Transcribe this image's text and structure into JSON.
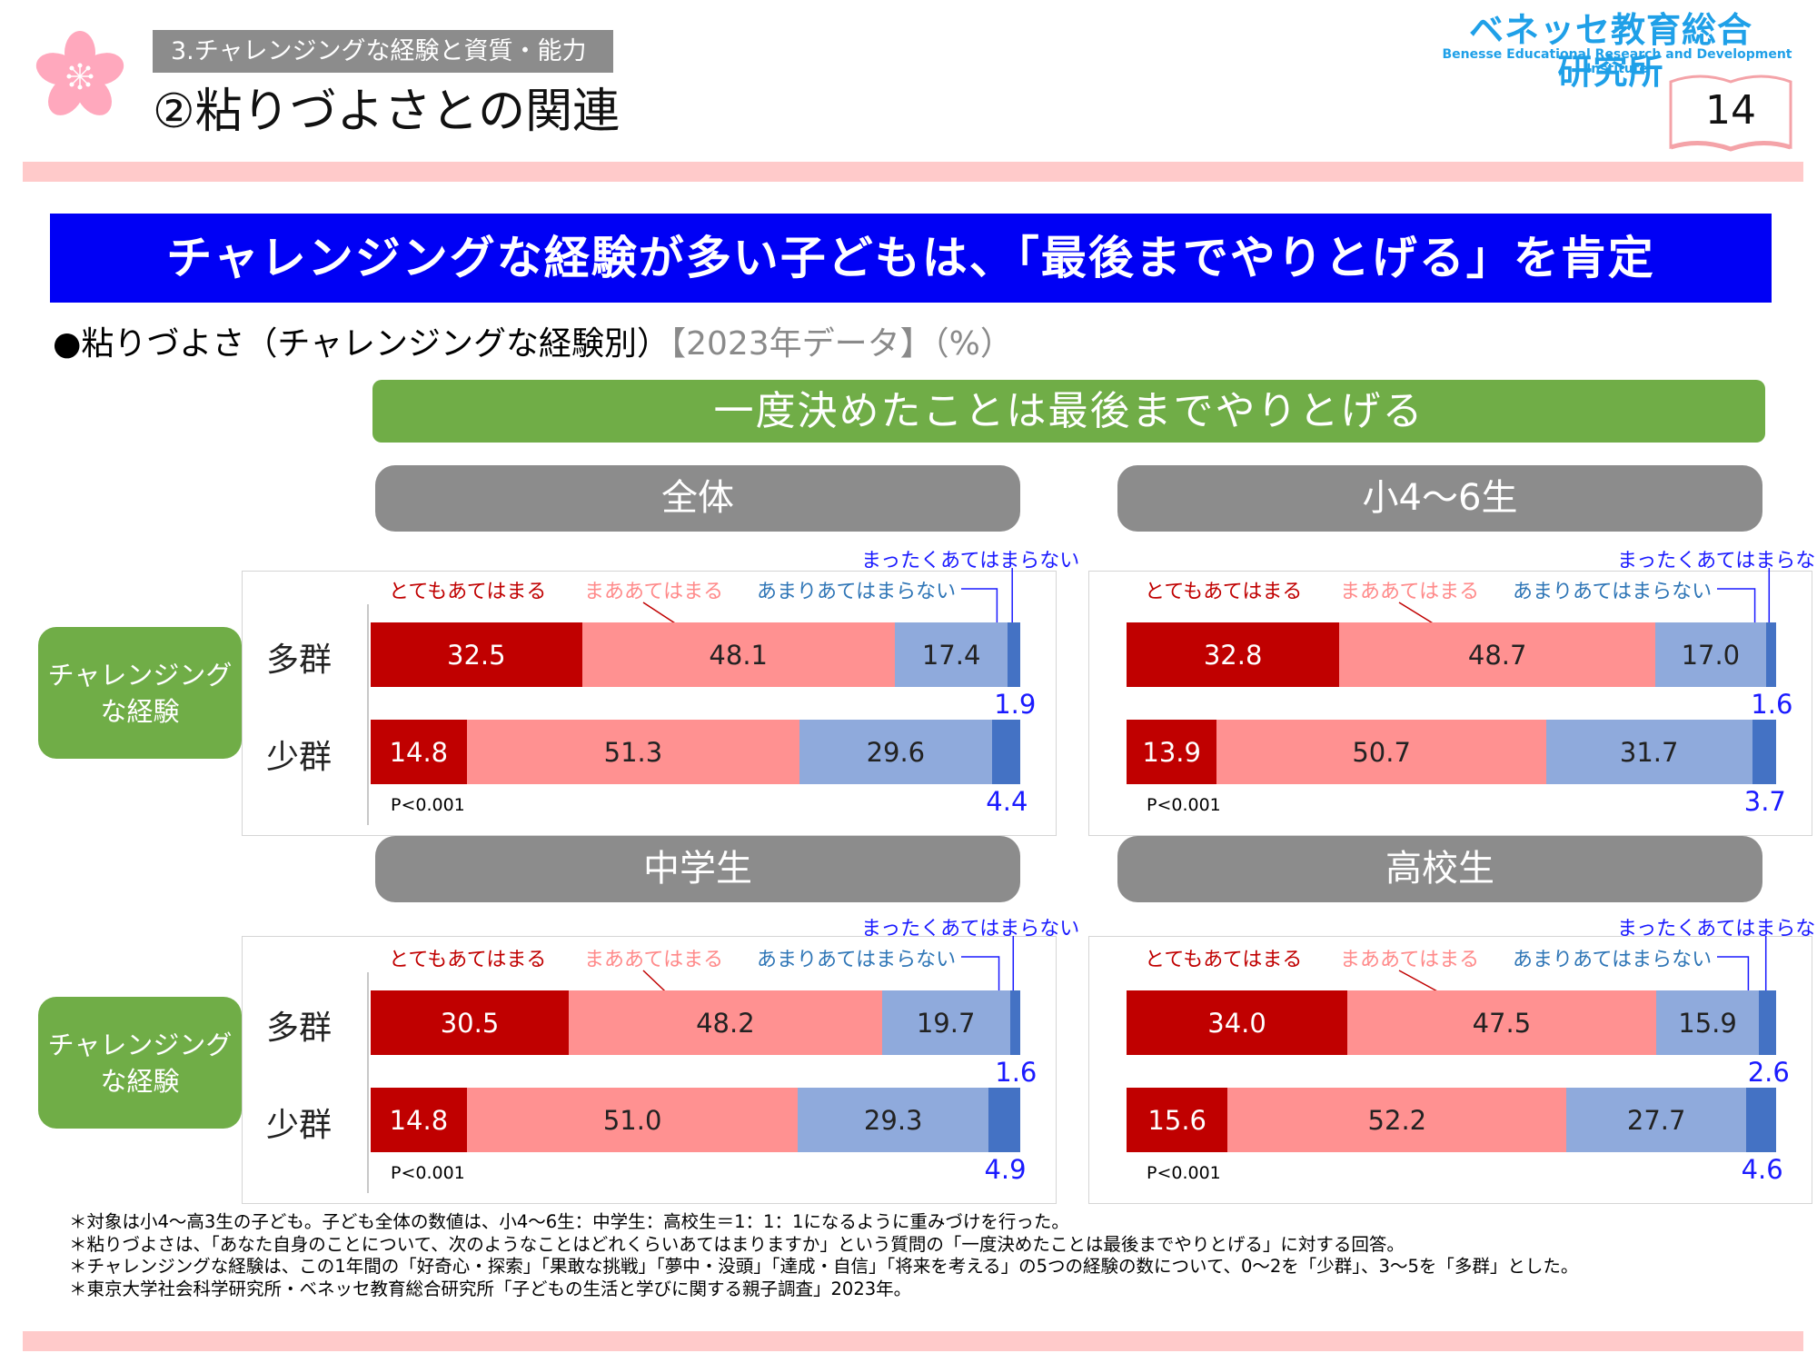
{
  "header": {
    "category": "3.チャレンジングな経験と資質・能力",
    "title": "②粘りづよさとの関連",
    "logo_jp": "ベネッセ教育総合研究所",
    "logo_en": "Benesse  Educational Research and Development Institute",
    "page_number": "14"
  },
  "banner": "チャレンジングな経験が多い子どもは、「最後までやりとげる」を肯定",
  "subtitle": {
    "main": "●粘りづよさ（チャレンジングな経験別）",
    "note": "【2023年データ】（%）"
  },
  "question_label": "一度決めたことは最後までやりとげる",
  "side_label": "チャレンジング\nな経験",
  "colors": {
    "totemo": "#c00000",
    "maa": "#ff9191",
    "amari": "#8faadc",
    "mattaku": "#4472c4",
    "banner": "#0000f5",
    "green": "#70ad47",
    "pink_bar": "#ffcaca"
  },
  "chart_data": {
    "type": "bar",
    "orientation": "horizontal-stacked-100",
    "unit": "%",
    "title": "一度決めたことは最後までやりとげる",
    "legend": [
      "とてもあてはまる",
      "まああてはまる",
      "あまりあてはまらない",
      "まったくあてはまらない"
    ],
    "categories": [
      "多群",
      "少群"
    ],
    "xlim": [
      0,
      100
    ],
    "panels": [
      {
        "title": "全体",
        "series": [
          {
            "name": "とてもあてはまる",
            "values": [
              32.5,
              14.8
            ]
          },
          {
            "name": "まああてはまる",
            "values": [
              48.1,
              51.3
            ]
          },
          {
            "name": "あまりあてはまらない",
            "values": [
              17.4,
              29.6
            ]
          },
          {
            "name": "まったくあてはまらない",
            "values": [
              1.9,
              4.4
            ]
          }
        ],
        "value_labels": [
          [
            "32.5",
            "48.1",
            "17.4",
            "1.9"
          ],
          [
            "14.8",
            "51.3",
            "29.6",
            "4.4"
          ]
        ],
        "p_value": "P<0.001"
      },
      {
        "title": "小4～6生",
        "series": [
          {
            "name": "とてもあてはまる",
            "values": [
              32.8,
              13.9
            ]
          },
          {
            "name": "まああてはまる",
            "values": [
              48.7,
              50.7
            ]
          },
          {
            "name": "あまりあてはまらない",
            "values": [
              17.0,
              31.7
            ]
          },
          {
            "name": "まったくあてはまらない",
            "values": [
              1.6,
              3.7
            ]
          }
        ],
        "value_labels": [
          [
            "32.8",
            "48.7",
            "17.0",
            "1.6"
          ],
          [
            "13.9",
            "50.7",
            "31.7",
            "3.7"
          ]
        ],
        "p_value": "P<0.001"
      },
      {
        "title": "中学生",
        "series": [
          {
            "name": "とてもあてはまる",
            "values": [
              30.5,
              14.8
            ]
          },
          {
            "name": "まああてはまる",
            "values": [
              48.2,
              51.0
            ]
          },
          {
            "name": "あまりあてはまらない",
            "values": [
              19.7,
              29.3
            ]
          },
          {
            "name": "まったくあてはまらない",
            "values": [
              1.6,
              4.9
            ]
          }
        ],
        "value_labels": [
          [
            "30.5",
            "48.2",
            "19.7",
            "1.6"
          ],
          [
            "14.8",
            "51.0",
            "29.3",
            "4.9"
          ]
        ],
        "p_value": "P<0.001"
      },
      {
        "title": "高校生",
        "series": [
          {
            "name": "とてもあてはまる",
            "values": [
              34.0,
              15.6
            ]
          },
          {
            "name": "まああてはまる",
            "values": [
              47.5,
              52.2
            ]
          },
          {
            "name": "あまりあてはまらない",
            "values": [
              15.9,
              27.7
            ]
          },
          {
            "name": "まったくあてはまらない",
            "values": [
              2.6,
              4.6
            ]
          }
        ],
        "value_labels": [
          [
            "34.0",
            "47.5",
            "15.9",
            "2.6"
          ],
          [
            "15.6",
            "52.2",
            "27.7",
            "4.6"
          ]
        ],
        "p_value": "P<0.001"
      }
    ]
  },
  "footnotes": [
    "＊対象は小4～高3生の子ども。子ども全体の数値は、小4～6生：中学生：高校生＝1：1：1になるように重みづけを行った。",
    "＊粘りづよさは、「あなた自身のことについて、次のようなことはどれくらいあてはまりますか」という質問の「一度決めたことは最後までやりとげる」に対する回答。",
    "＊チャレンジングな経験は、この1年間の「好奇心・探索」「果敢な挑戦」「夢中・没頭」「達成・自信」「将来を考える」の5つの経験の数について、0～2を「少群」、3～5を「多群」とした。",
    "＊東京大学社会科学研究所・ベネッセ教育総合研究所「子どもの生活と学びに関する親子調査」2023年。"
  ]
}
